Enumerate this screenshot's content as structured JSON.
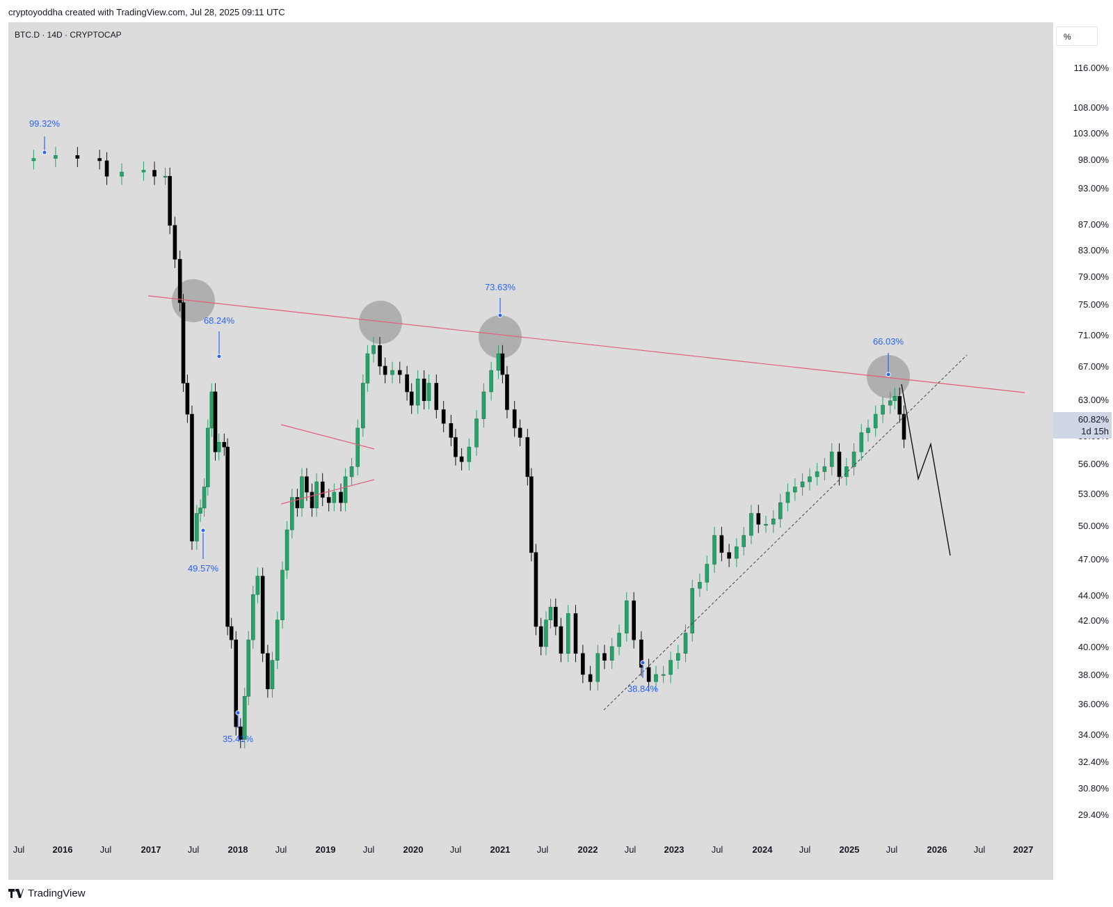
{
  "header": {
    "credit": "cryptoyoddha created with TradingView.com, Jul 28, 2025 09:11 UTC"
  },
  "symbol": {
    "line": "BTC.D · 14D · CRYPTOCAP"
  },
  "price_axis": {
    "unit_label": "%",
    "ticks": [
      "116.00%",
      "108.00%",
      "103.00%",
      "98.00%",
      "93.00%",
      "87.00%",
      "83.00%",
      "79.00%",
      "75.00%",
      "71.00%",
      "67.00%",
      "63.00%",
      "59.00%",
      "56.00%",
      "53.00%",
      "50.00%",
      "47.00%",
      "44.00%",
      "42.00%",
      "40.00%",
      "38.00%",
      "36.00%",
      "34.00%",
      "32.40%",
      "30.80%",
      "29.40%"
    ],
    "current_price": "60.82%",
    "countdown": "1d 15h"
  },
  "time_axis": {
    "labels": [
      "Jul",
      "2016",
      "Jul",
      "2017",
      "Jul",
      "2018",
      "Jul",
      "2019",
      "Jul",
      "2020",
      "Jul",
      "2021",
      "Jul",
      "2022",
      "Jul",
      "2023",
      "Jul",
      "2024",
      "Jul",
      "2025",
      "Jul",
      "2026",
      "Jul",
      "2027"
    ]
  },
  "annotations": [
    "99.32%",
    "68.24%",
    "49.57%",
    "35.41%",
    "73.63%",
    "38.84%",
    "66.03%"
  ],
  "footer": {
    "brand": "TradingView"
  },
  "colors": {
    "up": "#26a269",
    "down": "#000000",
    "resistance": "#e35d7a",
    "label": "#2962ff",
    "background": "#dcdcdc"
  },
  "chart_data": {
    "type": "candlestick",
    "title": "BTC.D · 14D · CRYPTOCAP",
    "y_scale": "log",
    "ylim": [
      28.4,
      125
    ],
    "xlim": [
      "2015-07-01",
      "2027-01-01"
    ],
    "grid": false,
    "key_points": [
      {
        "date": "2015-12-01",
        "value": 99.32,
        "label": "99.32%"
      },
      {
        "date": "2017-06-15",
        "value": 49.57,
        "label": "49.57%"
      },
      {
        "date": "2017-09-01",
        "value": 68.24,
        "label": "68.24%"
      },
      {
        "date": "2018-01-08",
        "value": 35.41,
        "label": "35.41%"
      },
      {
        "date": "2019-08-01",
        "value": 72.0
      },
      {
        "date": "2021-01-01",
        "value": 73.63,
        "label": "73.63%"
      },
      {
        "date": "2022-09-01",
        "value": 38.84,
        "label": "38.84%"
      },
      {
        "date": "2025-06-15",
        "value": 66.03,
        "label": "66.03%"
      },
      {
        "date": "2025-07-28",
        "value": 60.82,
        "label": "60.82%"
      }
    ],
    "series": [
      {
        "values": [
          [
            "2015-07-01",
            98.4
          ],
          [
            "2015-09-01",
            98.8
          ],
          [
            "2015-12-01",
            99.3
          ],
          [
            "2016-03-01",
            98.8
          ],
          [
            "2016-06-01",
            98.4
          ],
          [
            "2016-07-01",
            95.8
          ],
          [
            "2016-09-01",
            96.5
          ],
          [
            "2016-12-01",
            96.8
          ],
          [
            "2017-01-15",
            95.8
          ],
          [
            "2017-03-01",
            95.8
          ],
          [
            "2017-03-20",
            88.0
          ],
          [
            "2017-04-10",
            83.0
          ],
          [
            "2017-05-01",
            77.0
          ],
          [
            "2017-05-15",
            67.0
          ],
          [
            "2017-06-01",
            63.5
          ],
          [
            "2017-06-20",
            51.0
          ],
          [
            "2017-07-10",
            53.5
          ],
          [
            "2017-07-25",
            54.0
          ],
          [
            "2017-08-10",
            56.0
          ],
          [
            "2017-08-25",
            62.0
          ],
          [
            "2017-09-10",
            66.0
          ],
          [
            "2017-09-25",
            59.5
          ],
          [
            "2017-10-10",
            60.5
          ],
          [
            "2017-11-01",
            60.0
          ],
          [
            "2017-11-15",
            44.0
          ],
          [
            "2017-12-01",
            43.0
          ],
          [
            "2017-12-20",
            37.0
          ],
          [
            "2018-01-08",
            36.2
          ],
          [
            "2018-01-25",
            39.0
          ],
          [
            "2018-02-10",
            43.0
          ],
          [
            "2018-03-01",
            46.5
          ],
          [
            "2018-03-20",
            48.0
          ],
          [
            "2018-04-10",
            42.0
          ],
          [
            "2018-05-01",
            39.5
          ],
          [
            "2018-05-20",
            41.5
          ],
          [
            "2018-06-10",
            44.5
          ],
          [
            "2018-07-01",
            48.5
          ],
          [
            "2018-07-20",
            52.0
          ],
          [
            "2018-08-10",
            55.0
          ],
          [
            "2018-09-01",
            54.0
          ],
          [
            "2018-09-20",
            57.0
          ],
          [
            "2018-10-10",
            55.5
          ],
          [
            "2018-11-01",
            54.0
          ],
          [
            "2018-11-20",
            56.5
          ],
          [
            "2018-12-15",
            55.0
          ],
          [
            "2019-01-10",
            54.5
          ],
          [
            "2019-02-01",
            55.5
          ],
          [
            "2019-03-01",
            54.5
          ],
          [
            "2019-03-20",
            57.0
          ],
          [
            "2019-04-15",
            58.0
          ],
          [
            "2019-05-10",
            62.0
          ],
          [
            "2019-06-01",
            67.0
          ],
          [
            "2019-06-20",
            70.5
          ],
          [
            "2019-07-15",
            71.5
          ],
          [
            "2019-08-10",
            69.0
          ],
          [
            "2019-09-01",
            68.0
          ],
          [
            "2019-10-01",
            68.5
          ],
          [
            "2019-11-01",
            68.0
          ],
          [
            "2019-12-01",
            66.0
          ],
          [
            "2019-12-20",
            64.5
          ],
          [
            "2020-01-15",
            67.5
          ],
          [
            "2020-02-10",
            65.0
          ],
          [
            "2020-03-01",
            67.0
          ],
          [
            "2020-04-01",
            64.0
          ],
          [
            "2020-05-01",
            62.5
          ],
          [
            "2020-06-01",
            61.0
          ],
          [
            "2020-06-20",
            59.0
          ],
          [
            "2020-07-15",
            58.5
          ],
          [
            "2020-08-15",
            60.0
          ],
          [
            "2020-09-15",
            63.0
          ],
          [
            "2020-10-15",
            66.0
          ],
          [
            "2020-11-15",
            68.5
          ],
          [
            "2020-12-15",
            70.5
          ],
          [
            "2021-01-01",
            68.0
          ],
          [
            "2021-01-20",
            64.0
          ],
          [
            "2021-02-20",
            62.0
          ],
          [
            "2021-03-15",
            61.0
          ],
          [
            "2021-04-15",
            57.0
          ],
          [
            "2021-05-01",
            50.0
          ],
          [
            "2021-05-20",
            44.0
          ],
          [
            "2021-06-10",
            42.5
          ],
          [
            "2021-07-01",
            44.5
          ],
          [
            "2021-07-20",
            45.5
          ],
          [
            "2021-08-10",
            44.0
          ],
          [
            "2021-09-01",
            42.0
          ],
          [
            "2021-10-01",
            45.0
          ],
          [
            "2021-11-01",
            42.0
          ],
          [
            "2021-12-01",
            40.5
          ],
          [
            "2022-01-01",
            40.0
          ],
          [
            "2022-02-01",
            42.0
          ],
          [
            "2022-03-01",
            41.5
          ],
          [
            "2022-04-01",
            42.5
          ],
          [
            "2022-05-01",
            43.5
          ],
          [
            "2022-06-01",
            46.0
          ],
          [
            "2022-07-01",
            43.0
          ],
          [
            "2022-08-01",
            41.0
          ],
          [
            "2022-09-01",
            40.0
          ],
          [
            "2022-10-01",
            40.5
          ],
          [
            "2022-11-01",
            40.5
          ],
          [
            "2022-12-01",
            41.5
          ],
          [
            "2023-01-01",
            42.0
          ],
          [
            "2023-02-01",
            43.5
          ],
          [
            "2023-03-01",
            47.0
          ],
          [
            "2023-04-01",
            47.5
          ],
          [
            "2023-05-01",
            49.0
          ],
          [
            "2023-06-01",
            51.5
          ],
          [
            "2023-07-01",
            50.0
          ],
          [
            "2023-08-01",
            49.5
          ],
          [
            "2023-09-01",
            50.5
          ],
          [
            "2023-10-01",
            51.5
          ],
          [
            "2023-11-01",
            53.5
          ],
          [
            "2023-12-01",
            52.5
          ],
          [
            "2024-01-01",
            52.5
          ],
          [
            "2024-02-01",
            53.0
          ],
          [
            "2024-03-01",
            54.5
          ],
          [
            "2024-04-01",
            55.5
          ],
          [
            "2024-05-01",
            56.0
          ],
          [
            "2024-06-01",
            56.5
          ],
          [
            "2024-07-01",
            57.0
          ],
          [
            "2024-08-01",
            57.5
          ],
          [
            "2024-09-01",
            58.0
          ],
          [
            "2024-10-01",
            59.5
          ],
          [
            "2024-11-01",
            57.0
          ],
          [
            "2024-12-01",
            58.0
          ],
          [
            "2025-01-01",
            59.5
          ],
          [
            "2025-02-01",
            61.5
          ],
          [
            "2025-03-01",
            62.0
          ],
          [
            "2025-04-01",
            63.5
          ],
          [
            "2025-05-01",
            64.5
          ],
          [
            "2025-06-01",
            65.0
          ],
          [
            "2025-06-20",
            65.5
          ],
          [
            "2025-07-10",
            63.5
          ],
          [
            "2025-07-28",
            60.8
          ]
        ]
      }
    ]
  }
}
